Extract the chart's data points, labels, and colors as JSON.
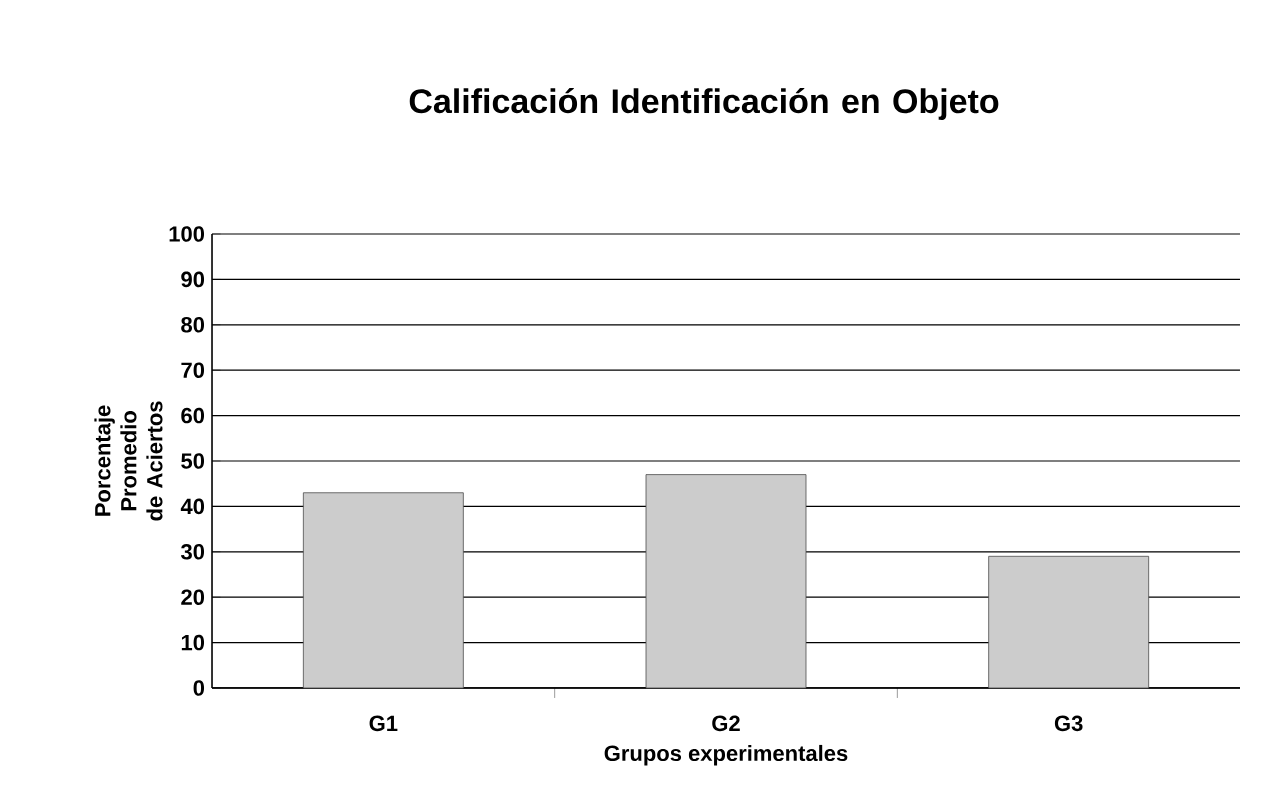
{
  "chart_data": {
    "type": "bar",
    "title": "Calificación Identificación en Objeto",
    "xlabel": "Grupos experimentales",
    "ylabel": "Porcentaje Promedio de Aciertos",
    "categories": [
      "G1",
      "G2",
      "G3"
    ],
    "values": [
      43,
      47,
      29
    ],
    "color": "#cccccc",
    "ylim": [
      0,
      100
    ],
    "yticks": [
      0,
      10,
      20,
      30,
      40,
      50,
      60,
      70,
      80,
      90,
      100
    ],
    "grid": "y"
  }
}
